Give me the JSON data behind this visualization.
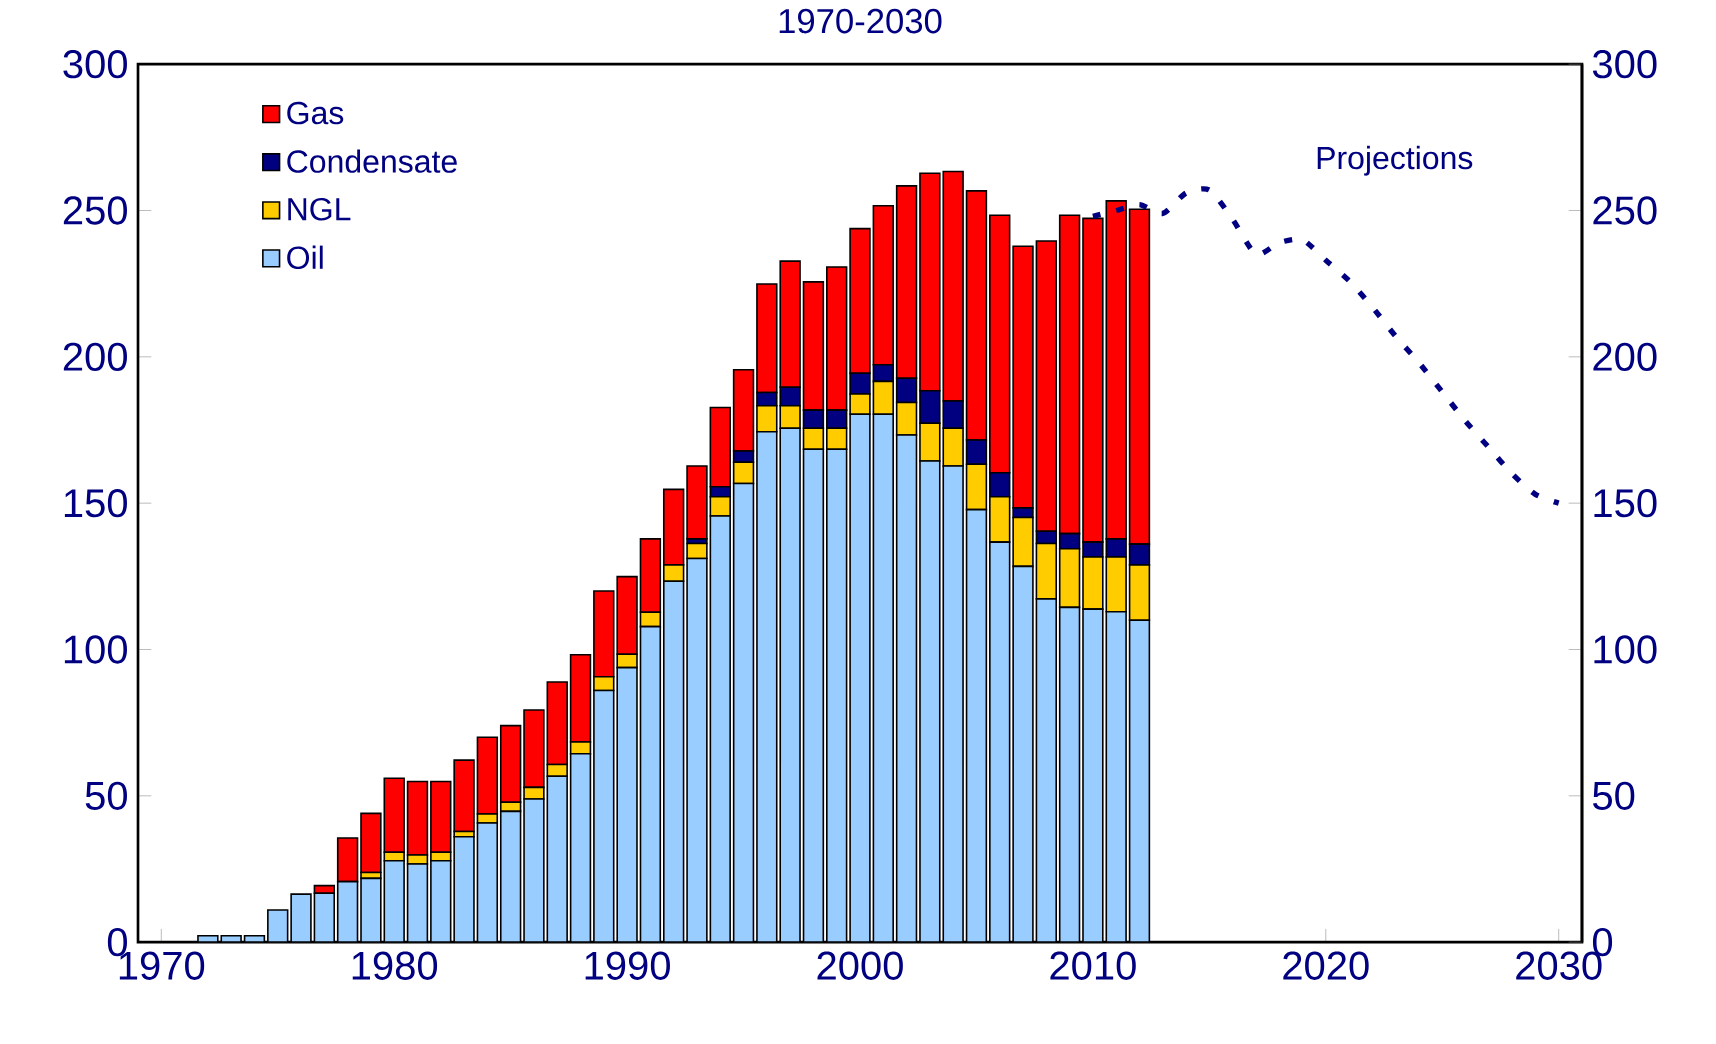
{
  "chart_data": {
    "type": "bar",
    "title": "1970-2030",
    "stacked": true,
    "x": [
      1972,
      1973,
      1974,
      1975,
      1976,
      1977,
      1978,
      1979,
      1980,
      1981,
      1982,
      1983,
      1984,
      1985,
      1986,
      1987,
      1988,
      1989,
      1990,
      1991,
      1992,
      1993,
      1994,
      1995,
      1996,
      1997,
      1998,
      1999,
      2000,
      2001,
      2002,
      2003,
      2004,
      2005,
      2006,
      2007,
      2008,
      2009,
      2010,
      2011,
      2012
    ],
    "series": [
      {
        "name": "Oil",
        "color": "#99ccff",
        "values": [
          2.2,
          2.2,
          2.2,
          11,
          16.4,
          16.7,
          20.7,
          21.8,
          27.8,
          26.7,
          27.8,
          36,
          40.7,
          44.7,
          48.9,
          56.7,
          64.4,
          86,
          93.8,
          107.8,
          123.3,
          131.1,
          145.6,
          156.7,
          174.4,
          175.6,
          168.4,
          168.4,
          180.4,
          180.4,
          173.3,
          164.4,
          162.7,
          147.8,
          136.7,
          128.4,
          117.3,
          114.4,
          113.8,
          112.9,
          110
        ]
      },
      {
        "name": "NGL",
        "color": "#ffcc00",
        "values": [
          0,
          0,
          0,
          0,
          0,
          0,
          0,
          2,
          2.9,
          3.1,
          2.9,
          1.8,
          3.1,
          3.1,
          4,
          4,
          4,
          4.7,
          4.6,
          4.9,
          5.6,
          5.1,
          6.6,
          7.3,
          8.9,
          7.7,
          7.2,
          7.2,
          6.9,
          11.2,
          11.1,
          12.9,
          12.9,
          15.5,
          15.5,
          16.7,
          18.9,
          20,
          17.8,
          18.7,
          18.9
        ]
      },
      {
        "name": "Condensate",
        "color": "#000080",
        "values": [
          0,
          0,
          0,
          0,
          0,
          0,
          0,
          0,
          0,
          0,
          0,
          0,
          0,
          0,
          0,
          0,
          0,
          0,
          0,
          0,
          0,
          1.6,
          3.4,
          3.8,
          4.5,
          6.3,
          6.2,
          6.2,
          7.1,
          5.7,
          8.3,
          11.1,
          9.3,
          8.3,
          8.2,
          3.3,
          4.2,
          5.2,
          5.1,
          6.2,
          7.1
        ]
      },
      {
        "name": "Gas",
        "color": "#ff0000",
        "values": [
          0,
          0,
          0,
          0,
          0,
          2.6,
          14.9,
          20.2,
          25.3,
          25.1,
          24.2,
          24.4,
          26.2,
          26.2,
          26.4,
          28.2,
          29.8,
          29.3,
          26.5,
          25.1,
          25.8,
          24.9,
          27.1,
          27.8,
          37.1,
          43.1,
          43.8,
          48.9,
          49.4,
          54.3,
          65.7,
          74.3,
          78.4,
          85.1,
          88,
          89.4,
          99.2,
          108.8,
          110.6,
          115.5,
          114.4
        ]
      },
      {
        "name": "Projections",
        "type": "line",
        "color": "#000080",
        "line_style": "dashed",
        "x": [
          2010,
          2011,
          2012,
          2013,
          2014,
          2015,
          2016,
          2017,
          2018,
          2019,
          2020,
          2021,
          2022,
          2023,
          2024,
          2025,
          2026,
          2027,
          2028,
          2029,
          2030
        ],
        "values": [
          248,
          250,
          252,
          249,
          256,
          257,
          247,
          235,
          239,
          240,
          233,
          226,
          217,
          207,
          198,
          188,
          178,
          169,
          160,
          153,
          150
        ]
      }
    ],
    "xlim": [
      1969,
      2031
    ],
    "xticks": [
      1970,
      1980,
      1990,
      2000,
      2010,
      2020,
      2030
    ],
    "ylim": [
      0,
      300
    ],
    "yticks": [
      0,
      50,
      100,
      150,
      200,
      250,
      300
    ],
    "y2lim": [
      0,
      300
    ],
    "y2ticks": [
      0,
      50,
      100,
      150,
      200,
      250,
      300
    ],
    "legend": "top left",
    "grid": false,
    "marker": "none"
  }
}
